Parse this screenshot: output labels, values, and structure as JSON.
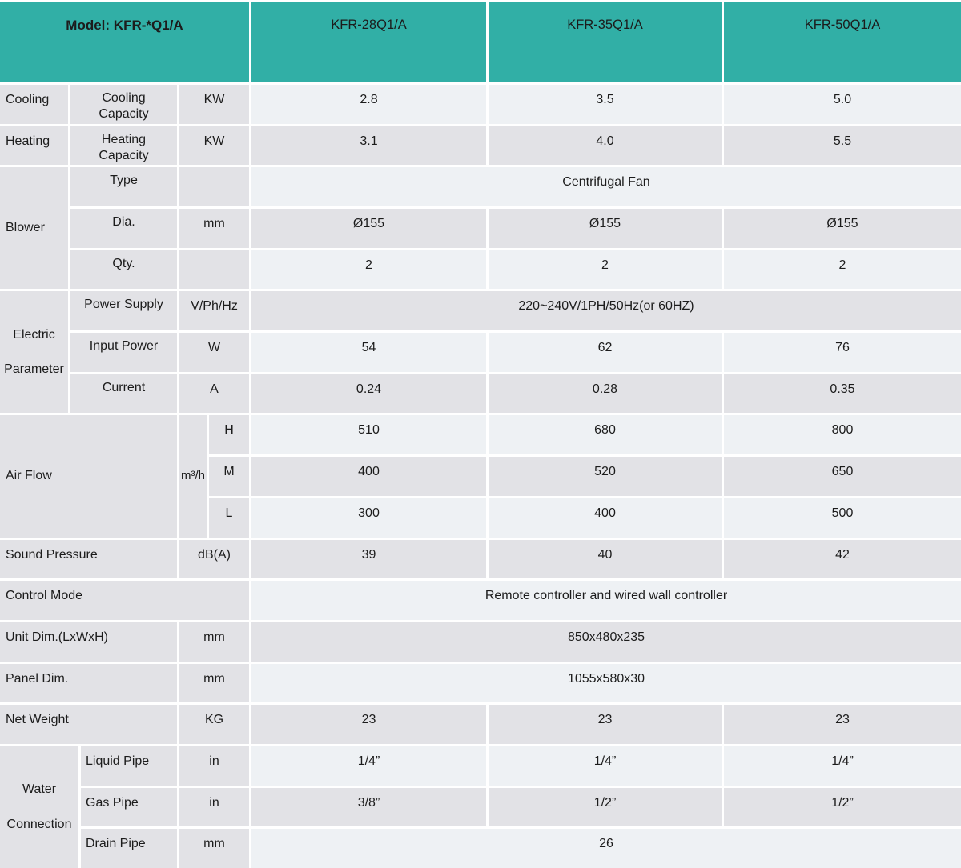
{
  "colors": {
    "header_teal": "#31AFA6",
    "row_light": "#EEF1F4",
    "row_gray": "#E2E2E6"
  },
  "header": {
    "model": "Model: KFR-*Q1/A",
    "col1": "KFR-28Q1/A",
    "col2": "KFR-35Q1/A",
    "col3": "KFR-50Q1/A"
  },
  "cooling": {
    "group": "Cooling",
    "label": "Cooling Capacity",
    "unit": "KW",
    "v1": "2.8",
    "v2": "3.5",
    "v3": "5.0"
  },
  "heating": {
    "group": "Heating",
    "label": "Heating Capacity",
    "unit": "KW",
    "v1": "3.1",
    "v2": "4.0",
    "v3": "5.5"
  },
  "blower": {
    "group": "Blower",
    "type": {
      "label": "Type",
      "value": "Centrifugal Fan"
    },
    "dia": {
      "label": "Dia.",
      "unit": "mm",
      "v1": "Ø155",
      "v2": "Ø155",
      "v3": "Ø155"
    },
    "qty": {
      "label": "Qty.",
      "v1": "2",
      "v2": "2",
      "v3": "2"
    }
  },
  "electric": {
    "group": "Electric Parameter",
    "power_supply": {
      "label": "Power Supply",
      "unit": "V/Ph/Hz",
      "value": "220~240V/1PH/50Hz(or 60HZ)"
    },
    "input_power": {
      "label": "Input Power",
      "unit": "W",
      "v1": "54",
      "v2": "62",
      "v3": "76"
    },
    "current": {
      "label": "Current",
      "unit": "A",
      "v1": "0.24",
      "v2": "0.28",
      "v3": "0.35"
    }
  },
  "air_flow": {
    "group": "Air Flow",
    "unit": "m³/h",
    "high": {
      "label": "H",
      "v1": "510",
      "v2": "680",
      "v3": "800"
    },
    "medium": {
      "label": "M",
      "v1": "400",
      "v2": "520",
      "v3": "650"
    },
    "low": {
      "label": "L",
      "v1": "300",
      "v2": "400",
      "v3": "500"
    }
  },
  "sound_pressure": {
    "label": "Sound Pressure",
    "unit": "dB(A)",
    "v1": "39",
    "v2": "40",
    "v3": "42"
  },
  "control_mode": {
    "label": "Control Mode",
    "value": "Remote controller and wired wall controller"
  },
  "unit_dim": {
    "label": "Unit Dim.(LxWxH)",
    "unit": "mm",
    "value": "850x480x235"
  },
  "panel_dim": {
    "label": "Panel Dim.",
    "unit": "mm",
    "value": "1055x580x30"
  },
  "net_weight": {
    "label": "Net Weight",
    "unit": "KG",
    "v1": "23",
    "v2": "23",
    "v3": "23"
  },
  "water": {
    "group": "Water Connection",
    "liquid": {
      "label": "Liquid Pipe",
      "unit": "in",
      "v1": "1/4”",
      "v2": "1/4”",
      "v3": "1/4”"
    },
    "gas": {
      "label": "Gas Pipe",
      "unit": "in",
      "v1": "3/8”",
      "v2": "1/2”",
      "v3": "1/2”"
    },
    "drain": {
      "label": "Drain Pipe",
      "unit": "mm",
      "value": "26"
    }
  }
}
